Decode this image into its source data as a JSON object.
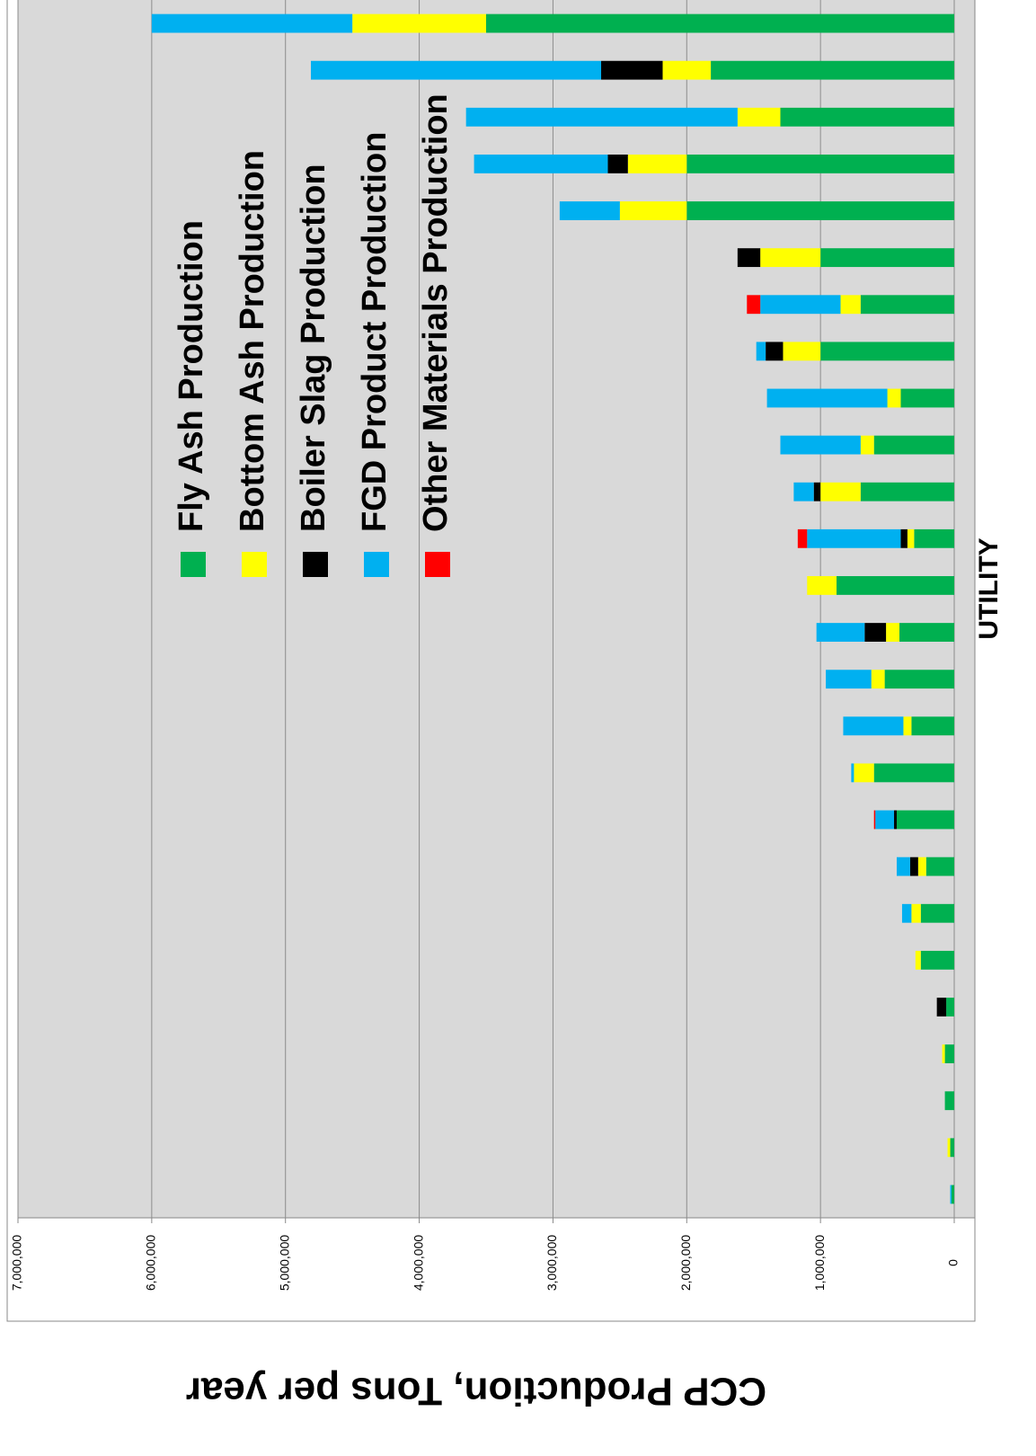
{
  "chart_data": {
    "type": "bar",
    "stacked": true,
    "title": "CCP Production, Tons per year",
    "x_label": "UTILITY",
    "grid": true,
    "categories": [
      null,
      null,
      null,
      null,
      null,
      null,
      null,
      null,
      null,
      null,
      null,
      null,
      null,
      null,
      null,
      null,
      null,
      null,
      null,
      null,
      null,
      null,
      null,
      null,
      null,
      null
    ],
    "ylim": [
      0,
      7000000
    ],
    "yticks": [
      0,
      {
        "value": 1000000,
        "label": "1,000,000"
      },
      {
        "value": 2000000,
        "label": "2,000,000"
      },
      {
        "value": 3000000,
        "label": "3,000,000"
      },
      {
        "value": 4000000,
        "label": "4,000,000"
      },
      {
        "value": 5000000,
        "label": "5,000,000"
      },
      {
        "value": 6000000,
        "label": "6,000,000"
      },
      {
        "value": 7000000,
        "label": "7,000,000"
      }
    ],
    "series": [
      {
        "name": "Fly Ash Production",
        "color": "#00b050",
        "values": [
          3500000,
          1820000,
          1300000,
          2000000,
          2000000,
          1000000,
          700000,
          1000000,
          400000,
          600000,
          700000,
          300000,
          880000,
          410000,
          520000,
          320000,
          600000,
          430000,
          210000,
          250000,
          250000,
          60000,
          70000,
          70000,
          30000,
          20000
        ]
      },
      {
        "name": "Bottom Ash Production",
        "color": "#ffff00",
        "values": [
          1000000,
          360000,
          320000,
          440000,
          500000,
          450000,
          150000,
          280000,
          100000,
          100000,
          300000,
          50000,
          220000,
          100000,
          100000,
          60000,
          150000,
          0,
          60000,
          70000,
          40000,
          0,
          20000,
          0,
          20000,
          0
        ]
      },
      {
        "name": "Boiler Slag Production",
        "color": "#000000",
        "values": [
          0,
          460000,
          0,
          150000,
          0,
          170000,
          0,
          130000,
          0,
          0,
          50000,
          50000,
          0,
          160000,
          0,
          0,
          0,
          20000,
          60000,
          0,
          0,
          70000,
          0,
          0,
          0,
          0
        ]
      },
      {
        "name": "FGD Product Production",
        "color": "#00b0f0",
        "values": [
          1500000,
          2170000,
          2030000,
          1000000,
          450000,
          0,
          600000,
          70000,
          900000,
          600000,
          150000,
          700000,
          0,
          360000,
          340000,
          450000,
          20000,
          140000,
          100000,
          70000,
          0,
          0,
          0,
          0,
          0,
          10000
        ]
      },
      {
        "name": "Other Materials Production",
        "color": "#ff0000",
        "values": [
          0,
          0,
          0,
          0,
          0,
          0,
          100000,
          0,
          0,
          0,
          0,
          70000,
          0,
          0,
          0,
          0,
          0,
          10000,
          0,
          0,
          0,
          0,
          0,
          0,
          0,
          0
        ]
      }
    ]
  }
}
